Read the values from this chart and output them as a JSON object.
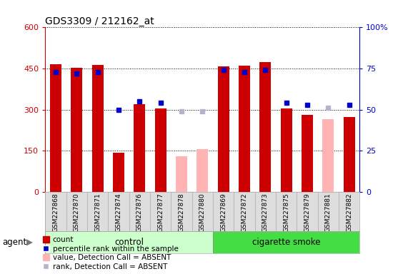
{
  "title": "GDS3309 / 212162_at",
  "samples": [
    "GSM227868",
    "GSM227870",
    "GSM227871",
    "GSM227874",
    "GSM227876",
    "GSM227877",
    "GSM227878",
    "GSM227880",
    "GSM227869",
    "GSM227872",
    "GSM227873",
    "GSM227875",
    "GSM227879",
    "GSM227881",
    "GSM227882"
  ],
  "n_control": 8,
  "n_smoke": 7,
  "count_values": [
    465,
    452,
    463,
    143,
    320,
    303,
    null,
    null,
    458,
    460,
    473,
    303,
    280,
    null,
    272
  ],
  "rank_pct": [
    73,
    72,
    73,
    50,
    55,
    54,
    null,
    null,
    74,
    73,
    74,
    54,
    53,
    null,
    53
  ],
  "absent_count": [
    null,
    null,
    null,
    null,
    null,
    null,
    130,
    155,
    null,
    null,
    null,
    null,
    null,
    265,
    null
  ],
  "absent_rank_pct": [
    null,
    null,
    null,
    null,
    null,
    null,
    49,
    49,
    null,
    null,
    null,
    null,
    null,
    51,
    null
  ],
  "ylim_left": [
    0,
    600
  ],
  "ylim_right": [
    0,
    100
  ],
  "yticks_left": [
    0,
    150,
    300,
    450,
    600
  ],
  "yticks_right": [
    0,
    25,
    50,
    75,
    100
  ],
  "bar_color": "#cc0000",
  "rank_color": "#0000cc",
  "absent_bar_color": "#ffb3b3",
  "absent_rank_color": "#b3b3cc",
  "control_bg_light": "#ccffcc",
  "smoke_bg_dark": "#44dd44",
  "xtick_bg": "#dddddd",
  "plot_bg": "#ffffff",
  "ylabel_left_color": "#cc0000",
  "ylabel_right_color": "#0000cc",
  "agent_label": "agent",
  "control_label": "control",
  "smoke_label": "cigarette smoke",
  "legend_items": [
    "count",
    "percentile rank within the sample",
    "value, Detection Call = ABSENT",
    "rank, Detection Call = ABSENT"
  ]
}
